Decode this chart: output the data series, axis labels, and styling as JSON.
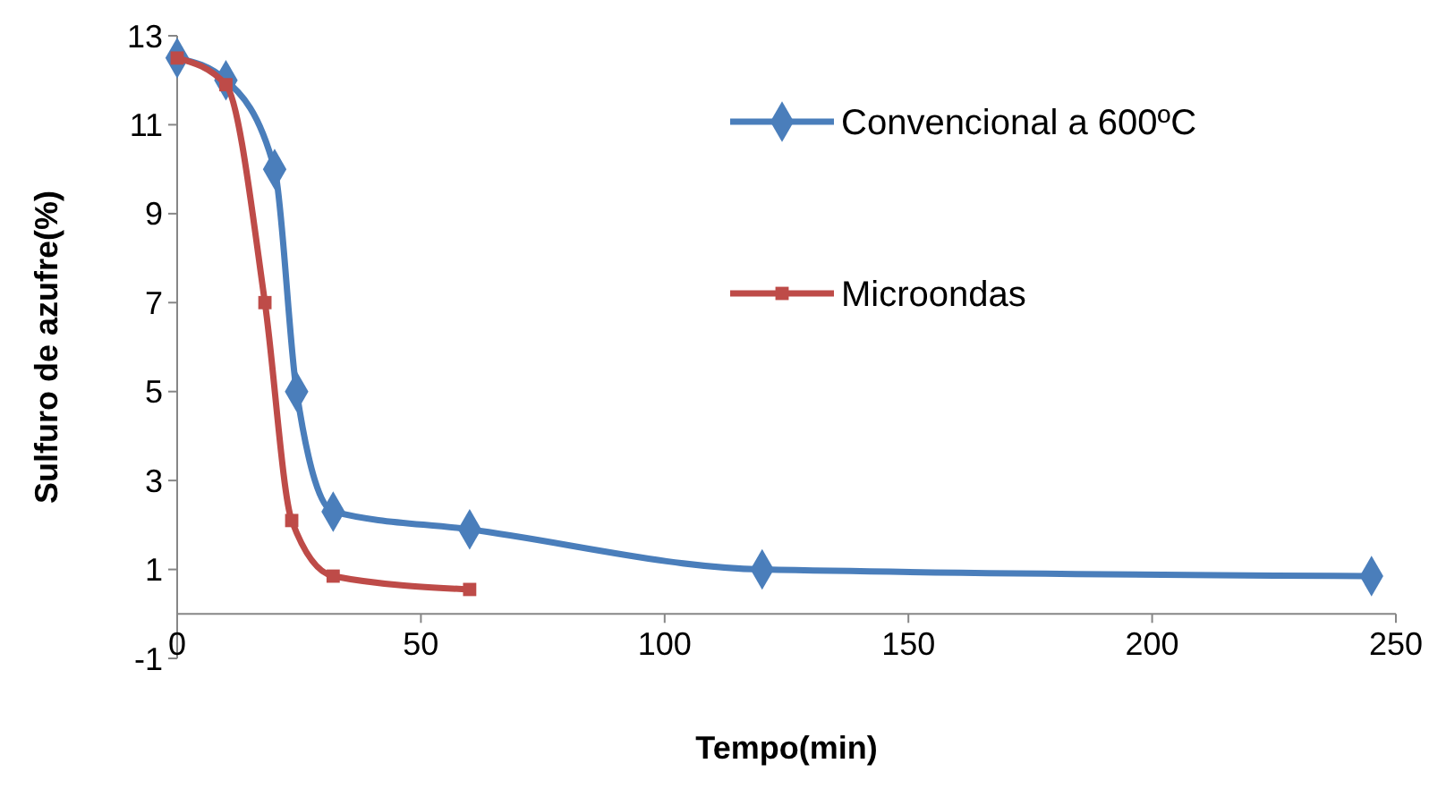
{
  "chart_data": {
    "type": "line",
    "xlabel": "Tempo(min)",
    "ylabel": "Sulfuro de azufre(%)",
    "xlim": [
      0,
      250
    ],
    "xticks": [
      0,
      50,
      100,
      150,
      200,
      250
    ],
    "ylim": [
      -1,
      13
    ],
    "yticks": [
      -1,
      1,
      3,
      5,
      7,
      9,
      11,
      13
    ],
    "grid": false,
    "legend": "right",
    "series": [
      {
        "name": "Convencional a 600ºC",
        "color": "#4a7ebb",
        "marker": "diamond",
        "x": [
          0,
          10,
          20,
          24.5,
          32,
          60,
          120,
          245
        ],
        "values": [
          12.5,
          12,
          10,
          5,
          2.3,
          1.9,
          1,
          0.85
        ]
      },
      {
        "name": "Microondas",
        "color": "#be4b48",
        "marker": "square",
        "x": [
          0,
          10,
          18,
          23.5,
          32,
          60
        ],
        "values": [
          12.5,
          11.9,
          7,
          2.1,
          0.85,
          0.55
        ]
      }
    ]
  }
}
